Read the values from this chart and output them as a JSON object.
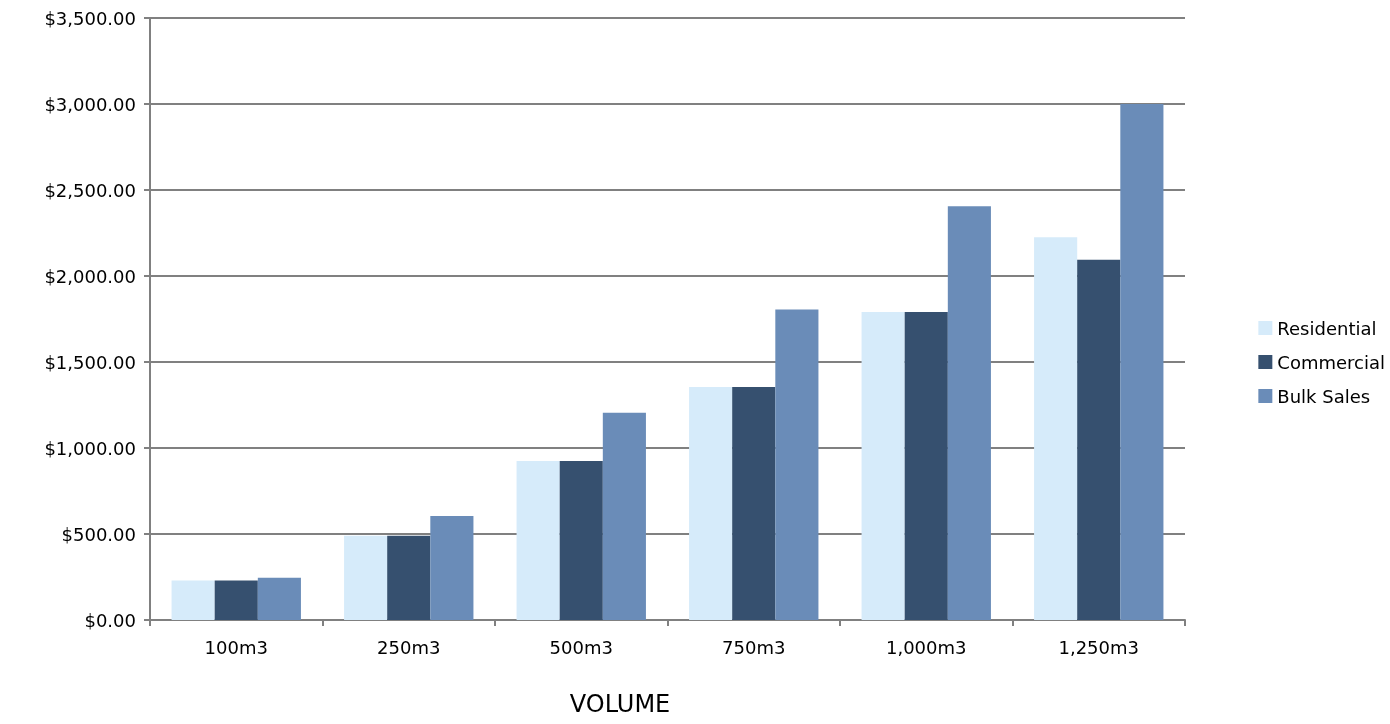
{
  "chart_data": {
    "type": "bar",
    "xlabel": "VOLUME",
    "categories": [
      "100m3",
      "250m3",
      "500m3",
      "750m3",
      "1,000m3",
      "1,250m3"
    ],
    "series": [
      {
        "name": "Residential",
        "color": "#d6ebfa",
        "values": [
          230,
          490,
          925,
          1355,
          1790,
          2225
        ]
      },
      {
        "name": "Commercial",
        "color": "#36506f",
        "values": [
          230,
          490,
          925,
          1355,
          1790,
          2095
        ]
      },
      {
        "name": "Bulk Sales",
        "color": "#6a8cb8",
        "values": [
          245,
          605,
          1205,
          1805,
          2405,
          3000
        ]
      }
    ],
    "ylim": [
      0,
      3500
    ],
    "yticks": [
      {
        "value": 0,
        "label": "$0.00"
      },
      {
        "value": 500,
        "label": "$500.00"
      },
      {
        "value": 1000,
        "label": "$1,000.00"
      },
      {
        "value": 1500,
        "label": "$1,500.00"
      },
      {
        "value": 2000,
        "label": "$2,000.00"
      },
      {
        "value": 2500,
        "label": "$2,500.00"
      },
      {
        "value": 3000,
        "label": "$3,000.00"
      },
      {
        "value": 3500,
        "label": "$3,500.00"
      }
    ],
    "grid": "y",
    "legend": "right"
  }
}
